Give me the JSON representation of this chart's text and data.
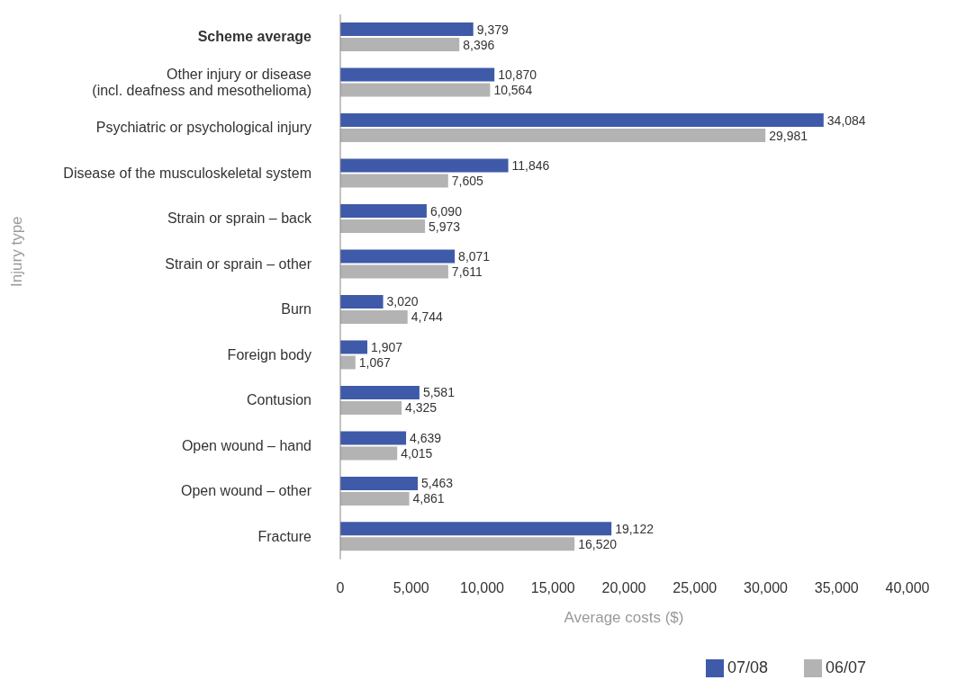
{
  "chart_data": {
    "type": "bar",
    "orientation": "horizontal",
    "xlabel": "Average costs ($)",
    "ylabel": "Injury type",
    "categories": [
      "Scheme average",
      "Other injury or disease\n(incl. deafness and mesothelioma)",
      "Psychiatric or psychological injury",
      "Disease of the musculoskeletal system",
      "Strain or sprain – back",
      "Strain or sprain – other",
      "Burn",
      "Foreign body",
      "Contusion",
      "Open wound – hand",
      "Open wound – other",
      "Fracture"
    ],
    "series": [
      {
        "name": "07/08",
        "color": "#3f5aa8",
        "values": [
          9379,
          10870,
          34084,
          11846,
          6090,
          8071,
          3020,
          1907,
          5581,
          4639,
          5463,
          19122
        ],
        "value_labels": [
          "9,379",
          "10,870",
          "34,084",
          "11,846",
          "6,090",
          "8,071",
          "3,020",
          "1,907",
          "5,581",
          "4,639",
          "5,463",
          "19,122"
        ]
      },
      {
        "name": "06/07",
        "color": "#b3b3b3",
        "values": [
          8396,
          10564,
          29981,
          7605,
          5973,
          7611,
          4744,
          1067,
          4325,
          4015,
          4861,
          16520
        ],
        "value_labels": [
          "8,396",
          "10,564",
          "29,981",
          "7,605",
          "5,973",
          "7,611",
          "4,744",
          "1,067",
          "4,325",
          "4,015",
          "4,861",
          "16,520"
        ]
      }
    ],
    "xlim": [
      0,
      40000
    ],
    "xticks": [
      0,
      {
        "value": 5000,
        "label": "5,000"
      },
      {
        "value": 10000,
        "label": "10,000"
      },
      {
        "value": 15000,
        "label": "15,000"
      },
      {
        "value": 20000,
        "label": "20,000"
      },
      {
        "value": 25000,
        "label": "25,000"
      },
      {
        "value": 30000,
        "label": "30,000"
      },
      {
        "value": 35000,
        "label": "35,000"
      },
      {
        "value": 40000,
        "label": "40,000"
      }
    ],
    "grid": false,
    "legend": "bottom"
  }
}
